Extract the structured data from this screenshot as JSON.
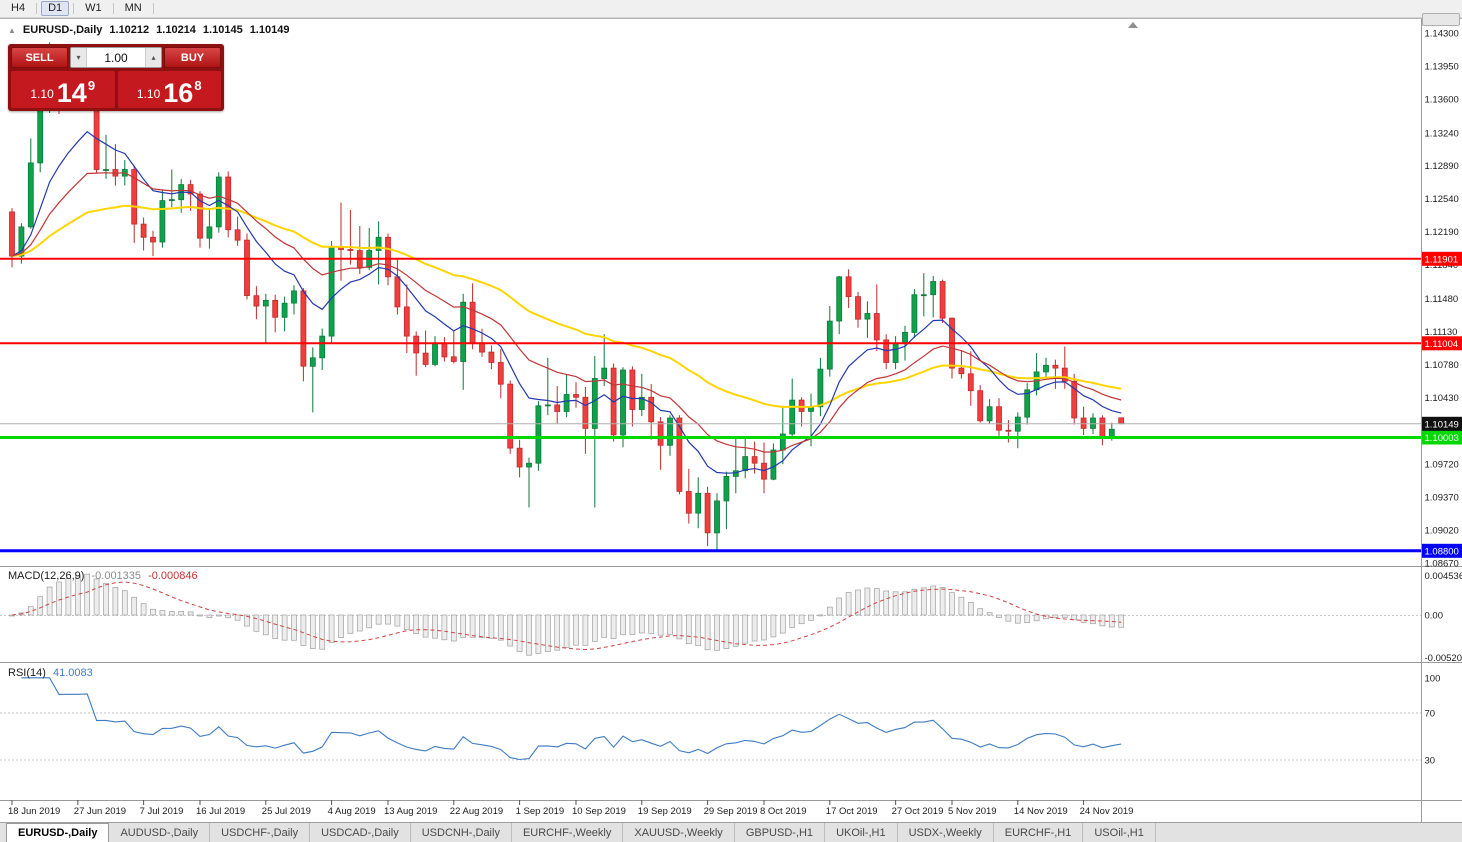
{
  "toolbar": {
    "timeframes": [
      "H4",
      "D1",
      "W1",
      "MN"
    ],
    "active": "D1"
  },
  "chart": {
    "symbol_title": "EURUSD-,Daily",
    "open": "1.10212",
    "high": "1.10214",
    "low": "1.10145",
    "close": "1.10149",
    "current_price_label": "1.10149",
    "price_axis": [
      "1.14300",
      "1.13950",
      "1.13600",
      "1.13240",
      "1.12890",
      "1.12540",
      "1.12190",
      "1.11840",
      "1.11480",
      "1.11130",
      "1.10780",
      "1.10430",
      "1.09720",
      "1.09370",
      "1.09020",
      "1.08670"
    ],
    "hlines": [
      {
        "price": 1.11901,
        "label": "1.11901",
        "color": "#ff0000",
        "width": 2
      },
      {
        "price": 1.11004,
        "label": "1.11004",
        "color": "#ff0000",
        "width": 2
      },
      {
        "price": 1.10003,
        "label": "1.10003",
        "color": "#00d800",
        "width": 3
      },
      {
        "price": 1.088,
        "label": "1.08800",
        "color": "#0000ff",
        "width": 3
      }
    ],
    "mas": [
      {
        "period": 45,
        "color": "#ffd400",
        "width": 2
      },
      {
        "period": 10,
        "color": "#2339b0",
        "width": 1.2
      },
      {
        "period": 20,
        "color": "#c13538",
        "width": 1.2
      }
    ],
    "colors": {
      "bull_fill": "#0fa24d",
      "bull_stroke": "#0a7a39",
      "bear_fill": "#ee3e3e",
      "bear_stroke": "#c22a2a",
      "current_line": "#b0b0b0",
      "current_badge": "#111111"
    },
    "dates": [
      [
        0,
        "18 Jun 2019"
      ],
      [
        7,
        "27 Jun 2019"
      ],
      [
        14,
        "7 Jul 2019"
      ],
      [
        20,
        "16 Jul 2019"
      ],
      [
        27,
        "25 Jul 2019"
      ],
      [
        34,
        "4 Aug 2019"
      ],
      [
        40,
        "13 Aug 2019"
      ],
      [
        47,
        "22 Aug 2019"
      ],
      [
        54,
        "1 Sep 2019"
      ],
      [
        60,
        "10 Sep 2019"
      ],
      [
        67,
        "19 Sep 2019"
      ],
      [
        74,
        "29 Sep 2019"
      ],
      [
        80,
        "8 Oct 2019"
      ],
      [
        87,
        "17 Oct 2019"
      ],
      [
        94,
        "27 Oct 2019"
      ],
      [
        100,
        "5 Nov 2019"
      ],
      [
        107,
        "14 Nov 2019"
      ],
      [
        114,
        "24 Nov 2019"
      ]
    ],
    "candles": [
      [
        1.124,
        1.1244,
        1.1181,
        1.1193
      ],
      [
        1.1193,
        1.1228,
        1.1185,
        1.1224
      ],
      [
        1.1224,
        1.1318,
        1.1222,
        1.1292
      ],
      [
        1.1292,
        1.1378,
        1.1282,
        1.1368
      ],
      [
        1.1368,
        1.142,
        1.1345,
        1.1399
      ],
      [
        1.1399,
        1.1412,
        1.1344,
        1.1365
      ],
      [
        1.1365,
        1.1391,
        1.1348,
        1.1367
      ],
      [
        1.1367,
        1.1389,
        1.1353,
        1.1367
      ],
      [
        1.1367,
        1.1394,
        1.1351,
        1.1373
      ],
      [
        1.1373,
        1.1376,
        1.1281,
        1.1285
      ],
      [
        1.1285,
        1.1322,
        1.1275,
        1.1285
      ],
      [
        1.1285,
        1.1312,
        1.1268,
        1.1278
      ],
      [
        1.1278,
        1.1295,
        1.1268,
        1.1285
      ],
      [
        1.1285,
        1.1289,
        1.1207,
        1.1227
      ],
      [
        1.1227,
        1.1234,
        1.1199,
        1.1213
      ],
      [
        1.1213,
        1.122,
        1.1193,
        1.1208
      ],
      [
        1.1208,
        1.1264,
        1.1202,
        1.1252
      ],
      [
        1.1252,
        1.1285,
        1.1245,
        1.1253
      ],
      [
        1.1253,
        1.1275,
        1.1239,
        1.1269
      ],
      [
        1.1269,
        1.1274,
        1.1241,
        1.1259
      ],
      [
        1.1259,
        1.1262,
        1.1202,
        1.1212
      ],
      [
        1.1212,
        1.1243,
        1.1201,
        1.1224
      ],
      [
        1.1224,
        1.1282,
        1.1218,
        1.1277
      ],
      [
        1.1277,
        1.1283,
        1.1213,
        1.1221
      ],
      [
        1.1221,
        1.1235,
        1.1204,
        1.121
      ],
      [
        1.121,
        1.1217,
        1.1147,
        1.1151
      ],
      [
        1.1151,
        1.1161,
        1.1126,
        1.114
      ],
      [
        1.114,
        1.1153,
        1.1101,
        1.1146
      ],
      [
        1.1146,
        1.1152,
        1.1112,
        1.1128
      ],
      [
        1.1128,
        1.115,
        1.1113,
        1.1143
      ],
      [
        1.1143,
        1.1162,
        1.1131,
        1.1156
      ],
      [
        1.1156,
        1.1159,
        1.106,
        1.1076
      ],
      [
        1.1076,
        1.1096,
        1.1027,
        1.1085
      ],
      [
        1.1085,
        1.1116,
        1.1072,
        1.1108
      ],
      [
        1.1108,
        1.1209,
        1.1101,
        1.1203
      ],
      [
        1.1203,
        1.125,
        1.1167,
        1.12
      ],
      [
        1.12,
        1.1242,
        1.1184,
        1.1199
      ],
      [
        1.1199,
        1.1225,
        1.1174,
        1.1181
      ],
      [
        1.1181,
        1.1223,
        1.1178,
        1.1199
      ],
      [
        1.1199,
        1.123,
        1.1163,
        1.1213
      ],
      [
        1.1213,
        1.1217,
        1.1162,
        1.1171
      ],
      [
        1.1171,
        1.1191,
        1.1131,
        1.1139
      ],
      [
        1.1139,
        1.1163,
        1.109,
        1.1108
      ],
      [
        1.1108,
        1.1113,
        1.1066,
        1.109
      ],
      [
        1.109,
        1.1114,
        1.1075,
        1.1078
      ],
      [
        1.1078,
        1.1108,
        1.1076,
        1.11
      ],
      [
        1.11,
        1.1107,
        1.1081,
        1.1086
      ],
      [
        1.1086,
        1.1113,
        1.1079,
        1.1081
      ],
      [
        1.1081,
        1.1153,
        1.1051,
        1.1144
      ],
      [
        1.1144,
        1.1164,
        1.1094,
        1.1101
      ],
      [
        1.1101,
        1.1116,
        1.1086,
        1.1091
      ],
      [
        1.1091,
        1.1098,
        1.1073,
        1.108
      ],
      [
        1.108,
        1.1094,
        1.1042,
        1.1057
      ],
      [
        1.1057,
        1.1061,
        1.0983,
        1.0989
      ],
      [
        1.0989,
        1.0998,
        1.0958,
        1.0969
      ],
      [
        1.0969,
        1.0979,
        1.0926,
        1.0973
      ],
      [
        1.0973,
        1.1039,
        1.0965,
        1.1034
      ],
      [
        1.1034,
        1.1085,
        1.1024,
        1.1035
      ],
      [
        1.1035,
        1.1055,
        1.1015,
        1.1028
      ],
      [
        1.1028,
        1.1067,
        1.1022,
        1.1046
      ],
      [
        1.1046,
        1.1059,
        1.1032,
        1.1043
      ],
      [
        1.1043,
        1.1054,
        1.0983,
        1.101
      ],
      [
        1.101,
        1.1087,
        1.0926,
        1.1063
      ],
      [
        1.1063,
        1.111,
        1.1055,
        1.1074
      ],
      [
        1.1074,
        1.1079,
        1.0996,
        1.1003
      ],
      [
        1.1003,
        1.1075,
        1.099,
        1.1072
      ],
      [
        1.1072,
        1.1076,
        1.1012,
        1.103
      ],
      [
        1.103,
        1.1068,
        1.1023,
        1.1043
      ],
      [
        1.1043,
        1.1057,
        1.0998,
        1.1017
      ],
      [
        1.1017,
        1.1022,
        1.0966,
        1.0992
      ],
      [
        1.0992,
        1.1024,
        1.0981,
        1.1021
      ],
      [
        1.1021,
        1.1024,
        1.094,
        1.0943
      ],
      [
        1.0943,
        1.0967,
        1.0909,
        1.092
      ],
      [
        1.092,
        1.0958,
        1.0904,
        1.0941
      ],
      [
        1.0941,
        1.0948,
        1.0885,
        1.0899
      ],
      [
        1.0899,
        1.0941,
        1.0879,
        1.0933
      ],
      [
        1.0933,
        1.0964,
        1.0903,
        1.0959
      ],
      [
        1.0959,
        1.0999,
        1.0941,
        1.0965
      ],
      [
        1.0965,
        1.0999,
        1.0957,
        1.098
      ],
      [
        1.098,
        1.0996,
        1.0962,
        1.0973
      ],
      [
        1.0973,
        1.0995,
        1.0941,
        1.0956
      ],
      [
        1.0956,
        1.0994,
        1.0955,
        1.0987
      ],
      [
        1.0987,
        1.1034,
        1.0972,
        1.1004
      ],
      [
        1.1004,
        1.1063,
        1.1002,
        1.104
      ],
      [
        1.104,
        1.1043,
        1.1012,
        1.1028
      ],
      [
        1.1028,
        1.1047,
        1.0991,
        1.1033
      ],
      [
        1.1033,
        1.1085,
        1.1023,
        1.1073
      ],
      [
        1.1073,
        1.114,
        1.1065,
        1.1124
      ],
      [
        1.1124,
        1.1172,
        1.111,
        1.1171
      ],
      [
        1.1171,
        1.1179,
        1.1138,
        1.115
      ],
      [
        1.115,
        1.1155,
        1.1117,
        1.1126
      ],
      [
        1.1126,
        1.1145,
        1.1106,
        1.1132
      ],
      [
        1.1132,
        1.1163,
        1.1092,
        1.1104
      ],
      [
        1.1104,
        1.111,
        1.1073,
        1.108
      ],
      [
        1.108,
        1.1108,
        1.1073,
        1.11
      ],
      [
        1.11,
        1.1119,
        1.1082,
        1.1112
      ],
      [
        1.1112,
        1.1158,
        1.1106,
        1.1152
      ],
      [
        1.1152,
        1.1175,
        1.1129,
        1.1152
      ],
      [
        1.1152,
        1.1172,
        1.1128,
        1.1166
      ],
      [
        1.1166,
        1.1168,
        1.1122,
        1.1127
      ],
      [
        1.1127,
        1.1128,
        1.1063,
        1.1074
      ],
      [
        1.1074,
        1.1093,
        1.1063,
        1.1068
      ],
      [
        1.1068,
        1.1092,
        1.1034,
        1.105
      ],
      [
        1.105,
        1.1056,
        1.1016,
        1.1018
      ],
      [
        1.1018,
        1.1041,
        1.1015,
        1.1033
      ],
      [
        1.1033,
        1.1042,
        1.1002,
        1.1008
      ],
      [
        1.1008,
        1.1019,
        1.0995,
        1.1007
      ],
      [
        1.1007,
        1.1027,
        1.0989,
        1.1022
      ],
      [
        1.1022,
        1.1058,
        1.1014,
        1.1051
      ],
      [
        1.1051,
        1.109,
        1.1045,
        1.107
      ],
      [
        1.107,
        1.1085,
        1.1063,
        1.1077
      ],
      [
        1.1077,
        1.1083,
        1.1052,
        1.1074
      ],
      [
        1.1074,
        1.1097,
        1.1052,
        1.106
      ],
      [
        1.106,
        1.1068,
        1.1014,
        1.1021
      ],
      [
        1.1021,
        1.1033,
        1.1003,
        1.101
      ],
      [
        1.101,
        1.1026,
        1.1004,
        1.1021
      ],
      [
        1.1021,
        1.1024,
        1.0992,
        1.1001
      ],
      [
        1.1001,
        1.1016,
        1.0997,
        1.1009
      ],
      [
        1.10212,
        1.10214,
        1.10145,
        1.10149
      ]
    ]
  },
  "oct": {
    "sell_label": "SELL",
    "buy_label": "BUY",
    "volume": "1.00",
    "sell_price_main": "1.10",
    "sell_price_pips": "14",
    "sell_price_point": "9",
    "buy_price_main": "1.10",
    "buy_price_pips": "16",
    "buy_price_point": "8"
  },
  "macd": {
    "name": "MACD(12,26,9)",
    "value_main": "-0.001335",
    "value_signal": "-0.000846",
    "axis": [
      "0.004536",
      "0.00",
      "-0.005205"
    ],
    "histogram_fill": "#ededed",
    "histogram_stroke": "#9f9f9f",
    "signal_color": "#d04545"
  },
  "rsi": {
    "name": "RSI(14)",
    "value": "41.0083",
    "axis": [
      100,
      70,
      30
    ],
    "levels": [
      70,
      30
    ],
    "color": "#3f7cc4"
  },
  "tabs": [
    {
      "label": "EURUSD-,Daily",
      "active": true
    },
    {
      "label": "AUDUSD-,Daily"
    },
    {
      "label": "USDCHF-,Daily"
    },
    {
      "label": "USDCAD-,Daily"
    },
    {
      "label": "USDCNH-,Daily"
    },
    {
      "label": "EURCHF-,Weekly"
    },
    {
      "label": "XAUUSD-,Weekly"
    },
    {
      "label": "GBPUSD-,H1"
    },
    {
      "label": "UKOil-,H1"
    },
    {
      "label": "USDX-,Weekly"
    },
    {
      "label": "EURCHF-,H1"
    },
    {
      "label": "USOil-,H1"
    }
  ]
}
